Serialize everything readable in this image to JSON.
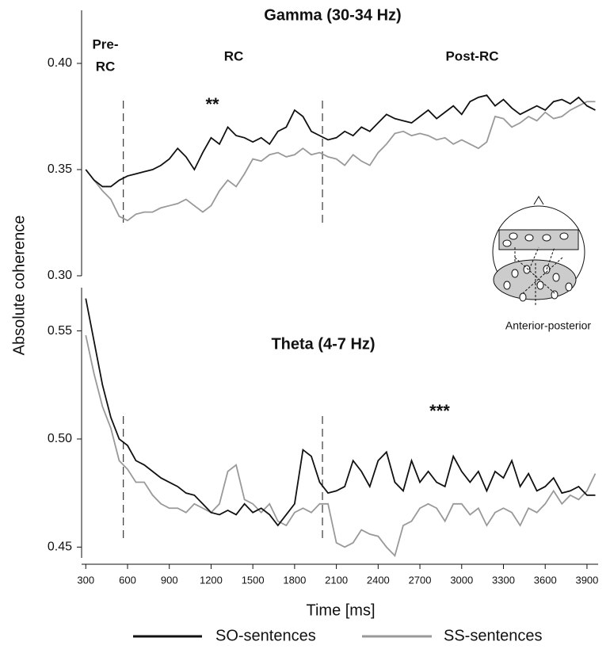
{
  "chart_data": [
    {
      "type": "line",
      "title": "Gamma (30-34 Hz)",
      "ylabel": "Absolute coherence",
      "annotations": [
        "Pre-",
        "RC",
        "RC",
        "Post-RC",
        "**"
      ],
      "vlines": [
        570,
        2000
      ],
      "xlim": [
        270,
        3980
      ],
      "ylim": [
        0.3,
        0.425
      ],
      "yticks": [
        {
          "value": 0.3,
          "label": "0.30"
        },
        0.35,
        {
          "value": 0.4,
          "label": "0.40"
        }
      ],
      "x": [
        300,
        360,
        420,
        480,
        540,
        600,
        660,
        720,
        780,
        840,
        900,
        960,
        1020,
        1080,
        1140,
        1200,
        1260,
        1320,
        1380,
        1440,
        1500,
        1560,
        1620,
        1680,
        1740,
        1800,
        1860,
        1920,
        1980,
        2040,
        2100,
        2160,
        2220,
        2280,
        2340,
        2400,
        2460,
        2520,
        2580,
        2640,
        2700,
        2760,
        2820,
        2880,
        2940,
        3000,
        3060,
        3120,
        3180,
        3240,
        3300,
        3360,
        3420,
        3480,
        3540,
        3600,
        3660,
        3720,
        3780,
        3840,
        3900,
        3960
      ],
      "series": [
        {
          "color": "#111111",
          "values": [
            0.35,
            0.345,
            0.342,
            0.342,
            0.345,
            0.347,
            0.348,
            0.349,
            0.35,
            0.352,
            0.355,
            0.36,
            0.356,
            0.35,
            0.358,
            0.365,
            0.362,
            0.37,
            0.366,
            0.365,
            0.363,
            0.365,
            0.362,
            0.368,
            0.37,
            0.378,
            0.375,
            0.368,
            0.366,
            0.364,
            0.365,
            0.368,
            0.366,
            0.37,
            0.368,
            0.372,
            0.376,
            0.374,
            0.373,
            0.372,
            0.375,
            0.378,
            0.374,
            0.377,
            0.38,
            0.376,
            0.382,
            0.384,
            0.385,
            0.38,
            0.383,
            0.379,
            0.376,
            0.378,
            0.38,
            0.378,
            0.382,
            0.383,
            0.381,
            0.384,
            0.38,
            0.378
          ]
        },
        {
          "color": "#999999",
          "values": [
            0.35,
            0.345,
            0.34,
            0.336,
            0.328,
            0.326,
            0.329,
            0.33,
            0.33,
            0.332,
            0.333,
            0.334,
            0.336,
            0.333,
            0.33,
            0.333,
            0.34,
            0.345,
            0.342,
            0.348,
            0.355,
            0.354,
            0.357,
            0.358,
            0.356,
            0.357,
            0.36,
            0.357,
            0.358,
            0.356,
            0.355,
            0.352,
            0.357,
            0.354,
            0.352,
            0.358,
            0.362,
            0.367,
            0.368,
            0.366,
            0.367,
            0.366,
            0.364,
            0.365,
            0.362,
            0.364,
            0.362,
            0.36,
            0.363,
            0.375,
            0.374,
            0.37,
            0.372,
            0.375,
            0.373,
            0.377,
            0.374,
            0.375,
            0.378,
            0.38,
            0.382,
            0.382
          ]
        }
      ]
    },
    {
      "type": "line",
      "title": "Theta (4-7 Hz)",
      "xlabel": "Time [ms]",
      "annotations": [
        "***"
      ],
      "vlines": [
        570,
        2000
      ],
      "xlim": [
        270,
        3980
      ],
      "ylim": [
        0.445,
        0.57
      ],
      "xticks": [
        300,
        600,
        900,
        1200,
        1500,
        1800,
        2100,
        2400,
        2700,
        3000,
        3300,
        3600,
        3900
      ],
      "yticks": [
        0.45,
        {
          "value": 0.5,
          "label": "0.50"
        },
        0.55
      ],
      "legend": "bottom",
      "x": [
        300,
        360,
        420,
        480,
        540,
        600,
        660,
        720,
        780,
        840,
        900,
        960,
        1020,
        1080,
        1140,
        1200,
        1260,
        1320,
        1380,
        1440,
        1500,
        1560,
        1620,
        1680,
        1740,
        1800,
        1860,
        1920,
        1980,
        2040,
        2100,
        2160,
        2220,
        2280,
        2340,
        2400,
        2460,
        2520,
        2580,
        2640,
        2700,
        2760,
        2820,
        2880,
        2940,
        3000,
        3060,
        3120,
        3180,
        3240,
        3300,
        3360,
        3420,
        3480,
        3540,
        3600,
        3660,
        3720,
        3780,
        3840,
        3900,
        3960
      ],
      "series": [
        {
          "name": "SO-sentences",
          "color": "#111111",
          "values": [
            0.565,
            0.545,
            0.525,
            0.51,
            0.5,
            0.497,
            0.49,
            0.488,
            0.485,
            0.482,
            0.48,
            0.478,
            0.475,
            0.474,
            0.47,
            0.466,
            0.465,
            0.467,
            0.465,
            0.47,
            0.466,
            0.468,
            0.465,
            0.46,
            0.465,
            0.47,
            0.495,
            0.492,
            0.48,
            0.475,
            0.476,
            0.478,
            0.49,
            0.485,
            0.478,
            0.49,
            0.494,
            0.48,
            0.476,
            0.49,
            0.48,
            0.485,
            0.48,
            0.478,
            0.492,
            0.485,
            0.48,
            0.485,
            0.476,
            0.485,
            0.482,
            0.49,
            0.478,
            0.484,
            0.476,
            0.478,
            0.482,
            0.475,
            0.476,
            0.478,
            0.474,
            0.474
          ]
        },
        {
          "name": "SS-sentences",
          "color": "#999999",
          "values": [
            0.548,
            0.53,
            0.515,
            0.505,
            0.49,
            0.486,
            0.48,
            0.48,
            0.474,
            0.47,
            0.468,
            0.468,
            0.466,
            0.47,
            0.468,
            0.466,
            0.47,
            0.485,
            0.488,
            0.472,
            0.47,
            0.466,
            0.47,
            0.462,
            0.46,
            0.466,
            0.468,
            0.466,
            0.47,
            0.47,
            0.452,
            0.45,
            0.452,
            0.458,
            0.456,
            0.455,
            0.45,
            0.446,
            0.46,
            0.462,
            0.468,
            0.47,
            0.468,
            0.462,
            0.47,
            0.47,
            0.465,
            0.468,
            0.46,
            0.466,
            0.468,
            0.466,
            0.46,
            0.468,
            0.466,
            0.47,
            0.476,
            0.47,
            0.474,
            0.472,
            0.476,
            0.484
          ]
        }
      ]
    }
  ],
  "inset": {
    "label": "Anterior-posterior"
  }
}
